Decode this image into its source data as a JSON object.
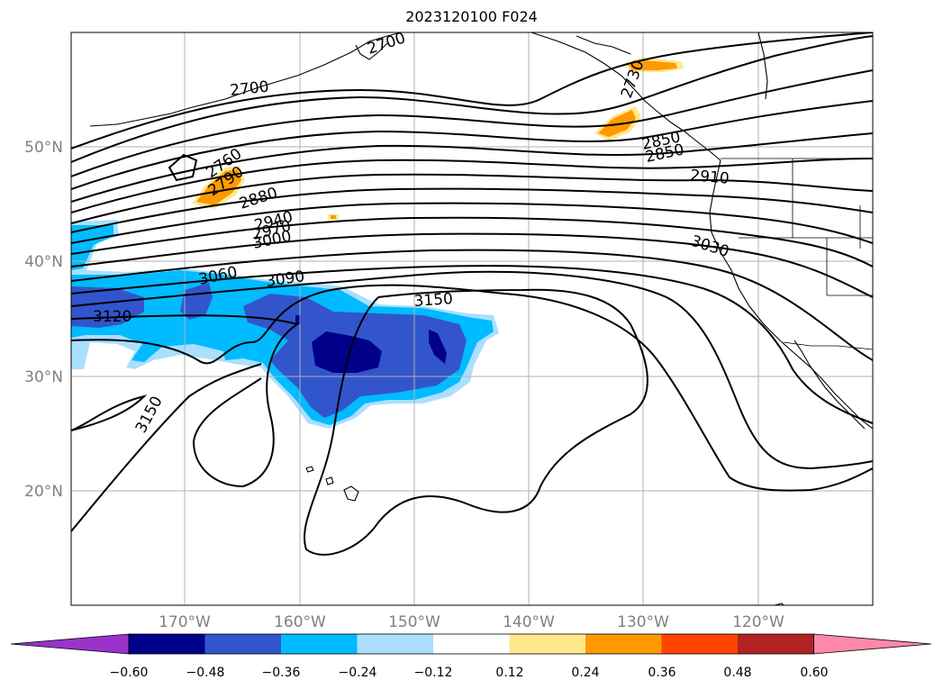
{
  "title": "2023120100 F024",
  "latitude_labels": [
    "50°N",
    "40°N",
    "30°N",
    "20°N"
  ],
  "longitude_labels": [
    "170°W",
    "160°W",
    "150°W",
    "140°W",
    "130°W",
    "120°W"
  ],
  "contour_labels": [
    "2700",
    "2760",
    "2790",
    "2880",
    "2940",
    "2970",
    "3000",
    "3060",
    "3090",
    "3150",
    "3120",
    "3150",
    "3030",
    "2910",
    "2850",
    "2850",
    "2700",
    "2730"
  ],
  "colorbar": {
    "colors": [
      "#9933cc",
      "#00008b",
      "#3355cc",
      "#00bbff",
      "#aadfff",
      "#ffffff",
      "#ffe88a",
      "#ff9900",
      "#ff4400",
      "#b22222",
      "#ff88aa"
    ],
    "ticks": [
      "−0.60",
      "−0.48",
      "−0.36",
      "−0.24",
      "−0.12",
      "0.12",
      "0.24",
      "0.36",
      "0.48",
      "0.60"
    ]
  }
}
